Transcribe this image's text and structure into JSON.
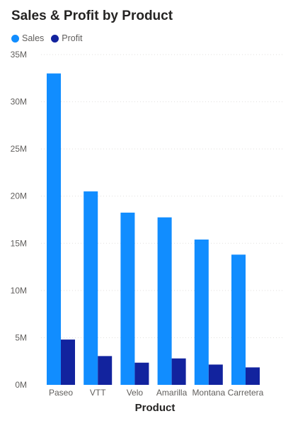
{
  "chart_data": {
    "type": "bar",
    "title": "Sales & Profit by Product",
    "xlabel": "Product",
    "ylabel": "",
    "categories": [
      "Paseo",
      "VTT",
      "Velo",
      "Amarilla",
      "Montana",
      "Carretera"
    ],
    "series": [
      {
        "name": "Sales",
        "color": "#118dff",
        "values": [
          33.0,
          20.5,
          18.25,
          17.75,
          15.4,
          13.8
        ]
      },
      {
        "name": "Profit",
        "color": "#12239e",
        "values": [
          4.8,
          3.05,
          2.35,
          2.8,
          2.15,
          1.85
        ]
      }
    ],
    "ylim": [
      0,
      35
    ],
    "yticks": [
      0,
      5,
      10,
      15,
      20,
      25,
      30,
      35
    ],
    "ytick_labels": [
      "0M",
      "5M",
      "10M",
      "15M",
      "20M",
      "25M",
      "30M",
      "35M"
    ],
    "value_unit": "M",
    "legend": "top-left",
    "grid": true
  }
}
